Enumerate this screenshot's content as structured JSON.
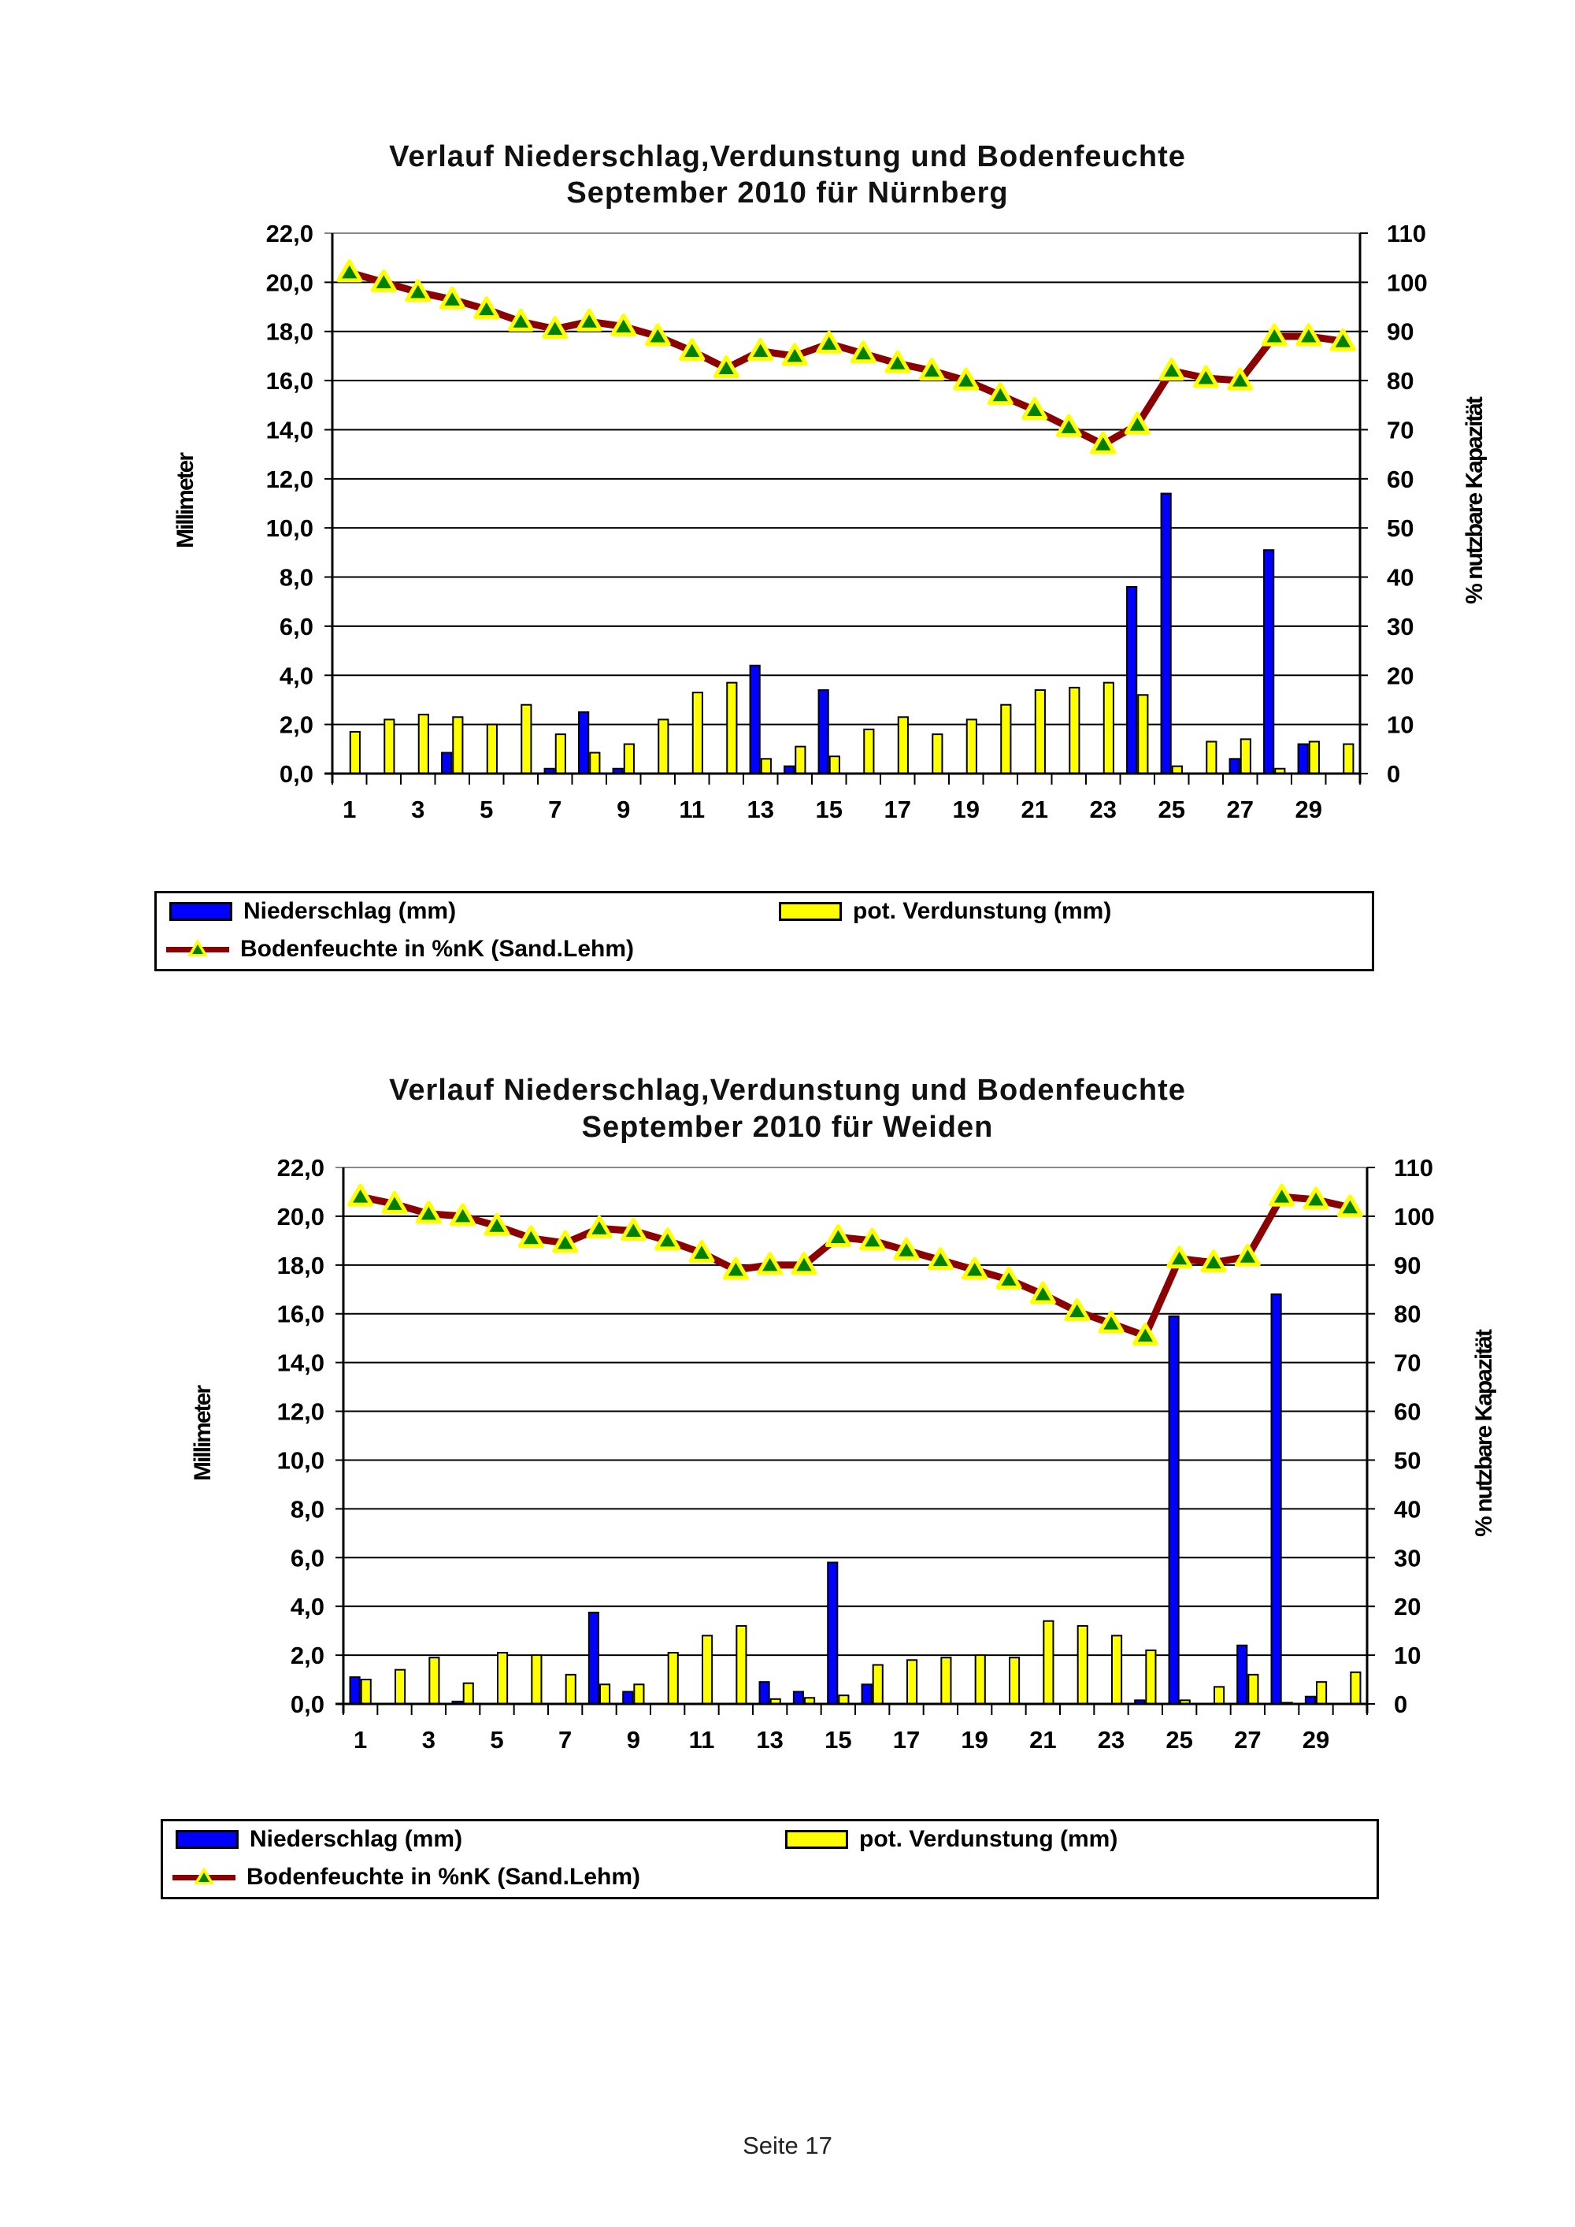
{
  "colors": {
    "precip": "#0000ff",
    "evap": "#ffff00",
    "soil_line": "#8b0000",
    "marker": "#008000",
    "marker_edge": "#ffff00"
  },
  "legend": {
    "precip": "Niederschlag (mm)",
    "evap": "pot. Verdunstung (mm)",
    "soil": "Bodenfeuchte in %nK (Sand.Lehm)"
  },
  "footer": "Seite 17",
  "chart_data": [
    {
      "type": "bar+line",
      "title_line1": "Verlauf Niederschlag,Verdunstung und Bodenfeuchte",
      "title_line2": "September 2010 für Nürnberg",
      "ylabel": "Millimeter",
      "y2label": "% nutzbare Kapazität",
      "ylim": [
        0,
        22
      ],
      "y2lim": [
        0,
        110
      ],
      "grid": true,
      "legend_position": "bottom",
      "yticks": [
        "0,0",
        "2,0",
        "4,0",
        "6,0",
        "8,0",
        "10,0",
        "12,0",
        "14,0",
        "16,0",
        "18,0",
        "20,0",
        "22,0"
      ],
      "y2ticks": [
        "0",
        "10",
        "20",
        "30",
        "40",
        "50",
        "60",
        "70",
        "80",
        "90",
        "100",
        "110"
      ],
      "xticks": [
        "1",
        "3",
        "5",
        "7",
        "9",
        "11",
        "13",
        "15",
        "17",
        "19",
        "21",
        "23",
        "25",
        "27",
        "29"
      ],
      "x": [
        1,
        2,
        3,
        4,
        5,
        6,
        7,
        8,
        9,
        10,
        11,
        12,
        13,
        14,
        15,
        16,
        17,
        18,
        19,
        20,
        21,
        22,
        23,
        24,
        25,
        26,
        27,
        28,
        29,
        30
      ],
      "series": [
        {
          "name": "Niederschlag (mm)",
          "axis": "left",
          "kind": "bar",
          "values": [
            0,
            0,
            0,
            0.85,
            0,
            0,
            0.2,
            2.5,
            0.2,
            0,
            0,
            0,
            4.4,
            0.3,
            3.4,
            0,
            0,
            0,
            0,
            0,
            0,
            0,
            0,
            7.6,
            11.4,
            0,
            0.6,
            9.1,
            1.2,
            0
          ]
        },
        {
          "name": "pot. Verdunstung (mm)",
          "axis": "left",
          "kind": "bar",
          "values": [
            1.7,
            2.2,
            2.4,
            2.3,
            2.0,
            2.8,
            1.6,
            0.85,
            1.2,
            2.2,
            3.3,
            3.7,
            0.6,
            1.1,
            0.7,
            1.8,
            2.3,
            1.6,
            2.2,
            2.8,
            3.4,
            3.5,
            3.7,
            3.2,
            0.3,
            1.3,
            1.4,
            0.2,
            1.3,
            1.2
          ]
        },
        {
          "name": "Bodenfeuchte in %nK (Sand.Lehm)",
          "axis": "right",
          "kind": "line",
          "values": [
            102,
            100,
            98,
            96.5,
            94.5,
            92,
            90.5,
            92,
            91,
            89,
            86,
            82.5,
            86,
            85,
            87.5,
            85.5,
            83.5,
            82,
            80,
            77,
            74,
            70.5,
            67,
            71,
            82,
            80.5,
            80,
            89,
            89,
            88
          ]
        }
      ]
    },
    {
      "type": "bar+line",
      "title_line1": "Verlauf Niederschlag,Verdunstung und Bodenfeuchte",
      "title_line2": "September 2010 für Weiden",
      "ylabel": "Millimeter",
      "y2label": "% nutzbare Kapazität",
      "ylim": [
        0,
        22
      ],
      "y2lim": [
        0,
        110
      ],
      "grid": true,
      "legend_position": "bottom",
      "yticks": [
        "0,0",
        "2,0",
        "4,0",
        "6,0",
        "8,0",
        "10,0",
        "12,0",
        "14,0",
        "16,0",
        "18,0",
        "20,0",
        "22,0"
      ],
      "y2ticks": [
        "0",
        "10",
        "20",
        "30",
        "40",
        "50",
        "60",
        "70",
        "80",
        "90",
        "100",
        "110"
      ],
      "xticks": [
        "1",
        "3",
        "5",
        "7",
        "9",
        "11",
        "13",
        "15",
        "17",
        "19",
        "21",
        "23",
        "25",
        "27",
        "29"
      ],
      "x": [
        1,
        2,
        3,
        4,
        5,
        6,
        7,
        8,
        9,
        10,
        11,
        12,
        13,
        14,
        15,
        16,
        17,
        18,
        19,
        20,
        21,
        22,
        23,
        24,
        25,
        26,
        27,
        28,
        29,
        30
      ],
      "series": [
        {
          "name": "Niederschlag (mm)",
          "axis": "left",
          "kind": "bar",
          "values": [
            1.1,
            0,
            0,
            0.1,
            0,
            0,
            0,
            3.75,
            0.5,
            0,
            0,
            0,
            0.9,
            0.5,
            5.8,
            0.8,
            0,
            0,
            0,
            0,
            0,
            0,
            0,
            0.15,
            15.9,
            0,
            2.4,
            16.8,
            0.3,
            0
          ]
        },
        {
          "name": "pot. Verdunstung (mm)",
          "axis": "left",
          "kind": "bar",
          "values": [
            1.0,
            1.4,
            1.9,
            0.85,
            2.1,
            2.0,
            1.2,
            0.8,
            0.8,
            2.1,
            2.8,
            3.2,
            0.2,
            0.25,
            0.35,
            1.6,
            1.8,
            1.9,
            2.0,
            1.9,
            3.4,
            3.2,
            2.8,
            2.2,
            0.15,
            0.7,
            1.2,
            0.05,
            0.9,
            1.3
          ]
        },
        {
          "name": "Bodenfeuchte in %nK (Sand.Lehm)",
          "axis": "right",
          "kind": "line",
          "values": [
            104,
            102.5,
            100.5,
            100,
            98,
            95.5,
            94.5,
            97.5,
            97,
            95,
            92.5,
            89,
            90,
            90,
            95.7,
            95,
            93,
            91,
            89,
            87,
            84,
            80.5,
            78,
            75.5,
            91.3,
            90.5,
            91.7,
            104,
            103.4,
            101.8
          ]
        }
      ]
    }
  ]
}
